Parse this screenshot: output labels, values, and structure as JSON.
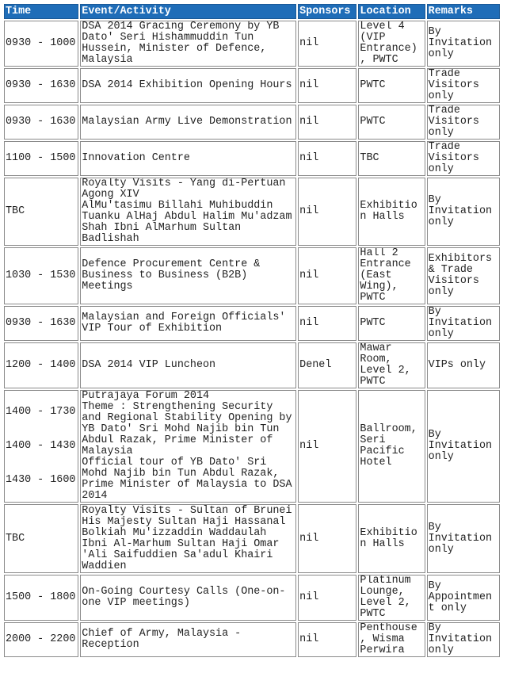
{
  "table": {
    "header": [
      "Time",
      "Event/Activity",
      "Sponsors",
      "Location",
      "Remarks"
    ],
    "rows": [
      [
        [
          "0930 - 1000"
        ],
        [
          "DSA 2014 Gracing Ceremony by YB Dato' Seri Hishammuddin Tun Hussein, Minister of Defence, Malaysia"
        ],
        [
          "nil"
        ],
        [
          "Level 4 (VIP Entrance), PWTC"
        ],
        [
          "By Invitation only"
        ]
      ],
      [
        [
          "0930 - 1630"
        ],
        [
          "DSA 2014 Exhibition Opening Hours"
        ],
        [
          "nil"
        ],
        [
          "PWTC"
        ],
        [
          "Trade Visitors only"
        ]
      ],
      [
        [
          "0930 - 1630"
        ],
        [
          "Malaysian Army Live Demonstration"
        ],
        [
          "nil"
        ],
        [
          "PWTC"
        ],
        [
          "Trade Visitors only"
        ]
      ],
      [
        [
          "1100 - 1500"
        ],
        [
          "Innovation Centre"
        ],
        [
          "nil"
        ],
        [
          "TBC"
        ],
        [
          "Trade Visitors only"
        ]
      ],
      [
        [
          "TBC"
        ],
        [
          "Royalty Visits - Yang di-Pertuan Agong XIV",
          "AlMu'tasimu Billahi Muhibuddin Tuanku AlHaj Abdul Halim Mu'adzam Shah Ibni AlMarhum Sultan Badlishah"
        ],
        [
          "nil"
        ],
        [
          "Exhibition Halls"
        ],
        [
          "By Invitation only"
        ]
      ],
      [
        [
          "1030 - 1530"
        ],
        [
          "Defence Procurement Centre & Business to Business (B2B) Meetings"
        ],
        [
          "nil"
        ],
        [
          "Hall 2 Entrance (East Wing), PWTC"
        ],
        [
          "Exhibitors & Trade Visitors only"
        ]
      ],
      [
        [
          "0930 - 1630"
        ],
        [
          "Malaysian and Foreign Officials' VIP Tour of Exhibition"
        ],
        [
          "nil"
        ],
        [
          "PWTC"
        ],
        [
          "By Invitation only"
        ]
      ],
      [
        [
          "1200 - 1400"
        ],
        [
          "DSA 2014 VIP Luncheon"
        ],
        [
          "Denel"
        ],
        [
          "Mawar Room, Level 2, PWTC"
        ],
        [
          "VIPs only"
        ]
      ],
      [
        [
          "1400 - 1730",
          "1400 - 1430",
          "1430 - 1600"
        ],
        [
          "Putrajaya Forum 2014",
          "Theme : Strengthening Security and Regional Stability Opening by YB Dato' Sri Mohd Najib bin Tun Abdul Razak, Prime Minister of Malaysia",
          "Official tour of YB Dato' Sri Mohd Najib bin Tun Abdul Razak, Prime Minister of Malaysia to DSA 2014"
        ],
        [
          "nil"
        ],
        [
          "Ballroom, Seri Pacific Hotel"
        ],
        [
          "By Invitation only"
        ]
      ],
      [
        [
          "TBC"
        ],
        [
          "Royalty Visits - Sultan of Brunei His Majesty Sultan Haji Hassanal Bolkiah Mu'izzaddin Waddaulah Ibni Al-Marhum Sultan Haji Omar 'Ali Saifuddien Sa'adul Khairi Waddien"
        ],
        [
          "nil"
        ],
        [
          "Exhibition Halls"
        ],
        [
          "By Invitation only"
        ]
      ],
      [
        [
          "1500 - 1800"
        ],
        [
          "On-Going Courtesy Calls (One-on-one VIP meetings)"
        ],
        [
          "nil"
        ],
        [
          "Platinum Lounge, Level 2, PWTC"
        ],
        [
          "By Appointment only"
        ]
      ],
      [
        [
          "2000 - 2200"
        ],
        [
          "Chief of Army, Malaysia - Reception"
        ],
        [
          "nil"
        ],
        [
          "Penthouse, Wisma Perwira"
        ],
        [
          "By Invitation only"
        ]
      ]
    ]
  }
}
